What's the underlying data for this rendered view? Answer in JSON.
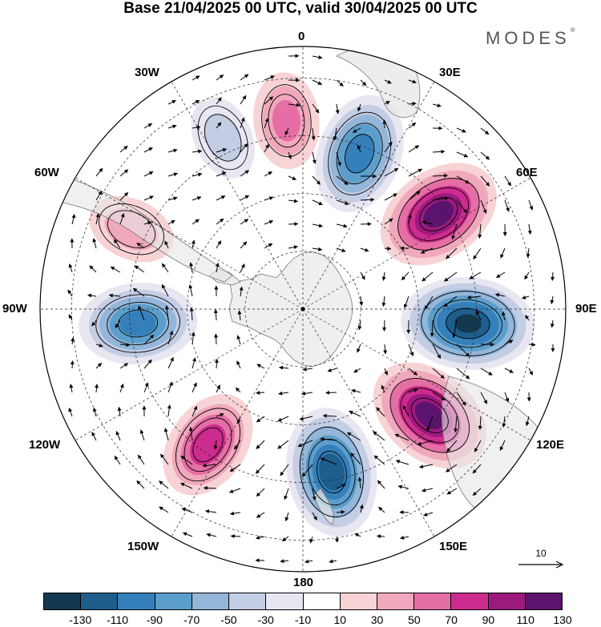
{
  "title": "Base 21/04/2025 00 UTC, valid 30/04/2025 00 UTC",
  "brand": "MODES",
  "brand_mark": "®",
  "longitude_labels": {
    "top": "0",
    "top_right": "30E",
    "upper_right": "60E",
    "right": "90E",
    "lower_right": "120E",
    "bottom_right": "150E",
    "bottom": "180",
    "bottom_left": "150W",
    "lower_left": "120W",
    "left": "90W",
    "upper_left": "60W",
    "top_left": "30W"
  },
  "reference_vector": {
    "label": "10",
    "icon": "arrow-right-icon"
  },
  "colorbar": {
    "colors": [
      "#12394f",
      "#1e5e8d",
      "#3580bb",
      "#5c9ecb",
      "#93b6d9",
      "#c3cde4",
      "#e8e6f1",
      "#ffffff",
      "#f7d3d5",
      "#f0a8bc",
      "#e56fa5",
      "#cc2c8d",
      "#9c1a7e",
      "#5b136d"
    ],
    "tick_labels": [
      "-130",
      "-110",
      "-90",
      "-70",
      "-50",
      "-30",
      "-10",
      "10",
      "30",
      "50",
      "70",
      "90",
      "110",
      "130"
    ]
  },
  "map_features": {
    "projection": "south polar stereographic",
    "grid": "dashed",
    "field": "geopotential height anomaly (shaded) with wind vectors (arrows)",
    "anomaly_centers": [
      {
        "lon": -5,
        "sign": "positive",
        "peak": 55
      },
      {
        "lon": 20,
        "sign": "negative",
        "peak": -105
      },
      {
        "lon": 55,
        "sign": "positive",
        "peak": 120
      },
      {
        "lon": 95,
        "sign": "negative",
        "peak": -135
      },
      {
        "lon": 130,
        "sign": "positive",
        "peak": 120
      },
      {
        "lon": 170,
        "sign": "negative",
        "peak": -125
      },
      {
        "lon": -145,
        "sign": "positive",
        "peak": 85
      },
      {
        "lon": -95,
        "sign": "negative",
        "peak": -100
      },
      {
        "lon": -65,
        "sign": "positive",
        "peak": 40
      },
      {
        "lon": -25,
        "sign": "negative",
        "peak": -35
      }
    ]
  }
}
